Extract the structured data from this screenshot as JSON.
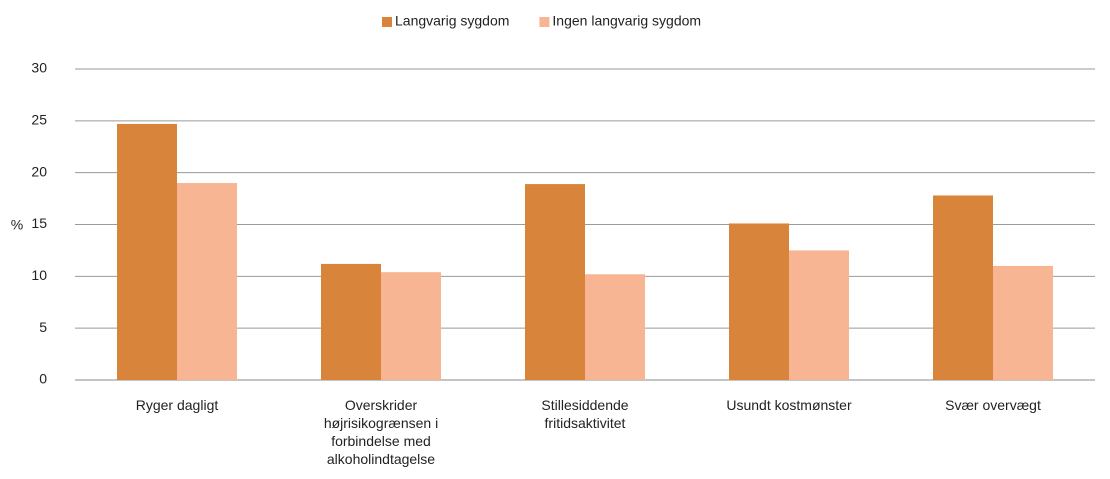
{
  "chart_data": {
    "type": "bar",
    "y_label": "%",
    "categories": [
      "Ryger dagligt",
      "Overskrider højrisikogrænsen i forbindelse med alkoholindtagelse",
      "Stillesiddende fritidsaktivitet",
      "Usundt kostmønster",
      "Svær overvægt"
    ],
    "series": [
      {
        "name": "Langvarig sygdom",
        "color": "#d9843b",
        "values": [
          24.7,
          11.2,
          18.9,
          15.1,
          17.8
        ]
      },
      {
        "name": "Ingen langvarig sygdom",
        "color": "#f8b593",
        "values": [
          19.0,
          10.4,
          10.2,
          12.5,
          11.0
        ]
      }
    ],
    "ylim": [
      0,
      30
    ],
    "yticks": [
      0,
      5,
      10,
      15,
      20,
      25,
      30
    ],
    "grid": true,
    "legend": "top"
  }
}
